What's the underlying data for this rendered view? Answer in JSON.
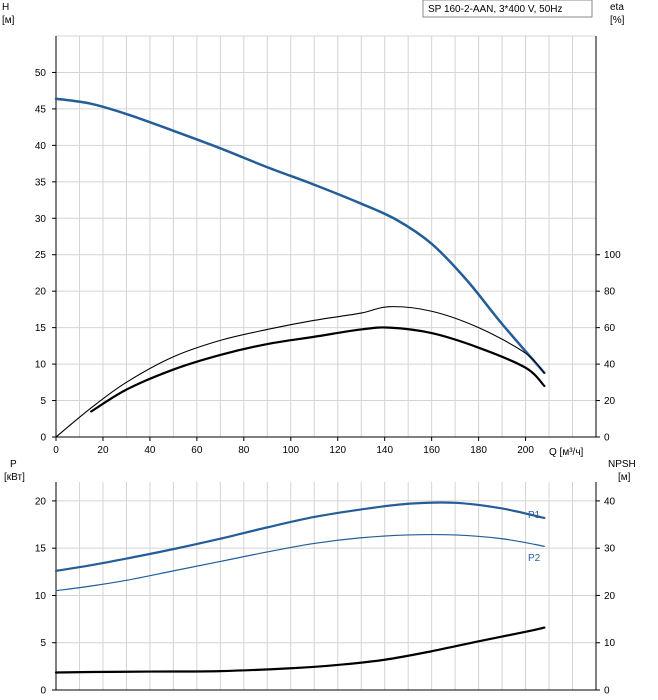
{
  "chart_data": [
    {
      "type": "line",
      "legend": "SP 160-2-AAN, 3*400 V, 50Hz",
      "left_axis": {
        "label_line1": "H",
        "label_line2": "[м]",
        "ylim": [
          0,
          55
        ],
        "ticks": [
          "0",
          "5",
          "10",
          "15",
          "20",
          "25",
          "30",
          "35",
          "40",
          "45",
          "50"
        ]
      },
      "right_axis": {
        "label_line1": "eta",
        "label_line2": "[%]",
        "ylim": [
          0,
          220
        ],
        "ticks": [
          "0",
          "20",
          "40",
          "60",
          "80",
          "100"
        ]
      },
      "x_axis": {
        "label": "Q [м³/ч]",
        "xlim": [
          0,
          230
        ],
        "ticks": [
          "0",
          "20",
          "40",
          "60",
          "80",
          "100",
          "120",
          "140",
          "160",
          "180",
          "200"
        ]
      },
      "series": [
        {
          "axis": "left",
          "color": "#245d98",
          "width": 2.5,
          "points": [
            [
              0,
              46.4
            ],
            [
              15,
              45.7
            ],
            [
              30,
              44.3
            ],
            [
              50,
              42.0
            ],
            [
              70,
              39.6
            ],
            [
              90,
              37.0
            ],
            [
              110,
              34.6
            ],
            [
              130,
              32.0
            ],
            [
              145,
              29.8
            ],
            [
              160,
              26.5
            ],
            [
              175,
              21.5
            ],
            [
              190,
              15.5
            ],
            [
              208,
              8.8
            ]
          ]
        },
        {
          "axis": "right",
          "color": "#000000",
          "width": 1.1,
          "points": [
            [
              0,
              0
            ],
            [
              15,
              16
            ],
            [
              30,
              30
            ],
            [
              50,
              44
            ],
            [
              70,
              53
            ],
            [
              90,
              59
            ],
            [
              110,
              64
            ],
            [
              130,
              68
            ],
            [
              142,
              71.5
            ],
            [
              160,
              69
            ],
            [
              180,
              60
            ],
            [
              200,
              46
            ],
            [
              208,
              35
            ]
          ]
        },
        {
          "axis": "right",
          "color": "#000000",
          "width": 2.2,
          "points": [
            [
              15,
              14
            ],
            [
              30,
              26
            ],
            [
              50,
              37
            ],
            [
              70,
              45
            ],
            [
              90,
              51
            ],
            [
              110,
              55
            ],
            [
              130,
              59
            ],
            [
              142,
              60
            ],
            [
              160,
              57
            ],
            [
              180,
              49
            ],
            [
              200,
              38
            ],
            [
              208,
              28
            ]
          ]
        }
      ]
    },
    {
      "type": "line",
      "left_axis": {
        "label_line1": "P",
        "label_line2": "[кВт]",
        "ylim": [
          0,
          22
        ],
        "ticks": [
          "0",
          "5",
          "10",
          "15",
          "20"
        ]
      },
      "right_axis": {
        "label_line1": "NPSH",
        "label_line2": "[м]",
        "ylim": [
          0,
          44
        ],
        "ticks": [
          "0",
          "10",
          "20",
          "30",
          "40"
        ]
      },
      "x_axis": {
        "xlim": [
          0,
          230
        ]
      },
      "series": [
        {
          "name": "P1",
          "axis": "left",
          "color": "#245d98",
          "width": 2.2,
          "points": [
            [
              0,
              12.6
            ],
            [
              15,
              13.2
            ],
            [
              30,
              13.9
            ],
            [
              50,
              14.9
            ],
            [
              70,
              16.0
            ],
            [
              90,
              17.2
            ],
            [
              110,
              18.3
            ],
            [
              130,
              19.1
            ],
            [
              150,
              19.7
            ],
            [
              170,
              19.8
            ],
            [
              190,
              19.2
            ],
            [
              208,
              18.2
            ]
          ]
        },
        {
          "name": "P2",
          "axis": "left",
          "color": "#245d98",
          "width": 1.2,
          "points": [
            [
              0,
              10.5
            ],
            [
              15,
              11.0
            ],
            [
              30,
              11.6
            ],
            [
              50,
              12.6
            ],
            [
              70,
              13.6
            ],
            [
              90,
              14.6
            ],
            [
              110,
              15.5
            ],
            [
              130,
              16.1
            ],
            [
              150,
              16.4
            ],
            [
              170,
              16.4
            ],
            [
              190,
              16.0
            ],
            [
              208,
              15.2
            ]
          ]
        },
        {
          "axis": "right",
          "color": "#000000",
          "width": 2.2,
          "points": [
            [
              0,
              3.7
            ],
            [
              15,
              3.8
            ],
            [
              40,
              3.9
            ],
            [
              70,
              4.0
            ],
            [
              100,
              4.6
            ],
            [
              120,
              5.3
            ],
            [
              140,
              6.4
            ],
            [
              160,
              8.2
            ],
            [
              180,
              10.3
            ],
            [
              200,
              12.3
            ],
            [
              208,
              13.2
            ]
          ]
        }
      ]
    }
  ]
}
